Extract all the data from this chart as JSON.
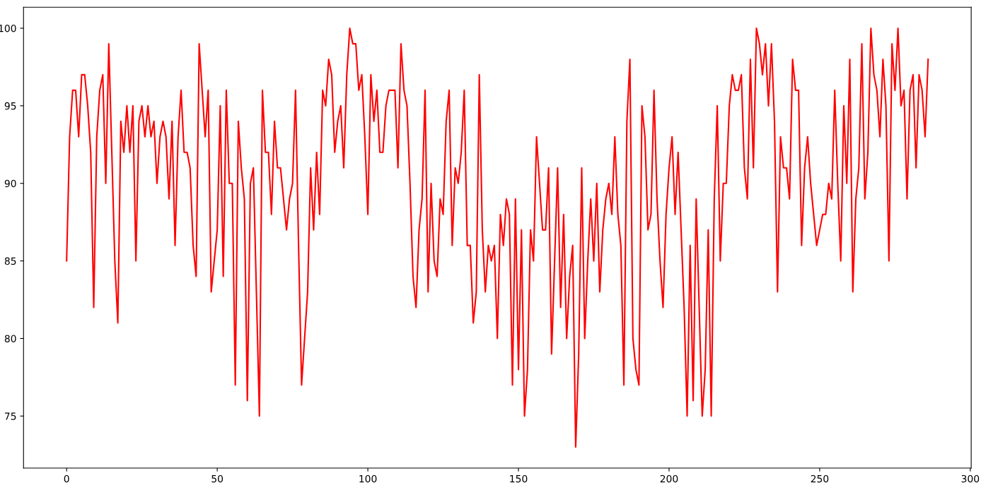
{
  "chart_data": {
    "type": "line",
    "x": [
      0,
      1,
      2,
      3,
      4,
      5,
      6,
      7,
      8,
      9,
      10,
      11,
      12,
      13,
      14,
      15,
      16,
      17,
      18,
      19,
      20,
      21,
      22,
      23,
      24,
      25,
      26,
      27,
      28,
      29,
      30,
      31,
      32,
      33,
      34,
      35,
      36,
      37,
      38,
      39,
      40,
      41,
      42,
      43,
      44,
      45,
      46,
      47,
      48,
      49,
      50,
      51,
      52,
      53,
      54,
      55,
      56,
      57,
      58,
      59,
      60,
      61,
      62,
      63,
      64,
      65,
      66,
      67,
      68,
      69,
      70,
      71,
      72,
      73,
      74,
      75,
      76,
      77,
      78,
      79,
      80,
      81,
      82,
      83,
      84,
      85,
      86,
      87,
      88,
      89,
      90,
      91,
      92,
      93,
      94,
      95,
      96,
      97,
      98,
      99,
      100,
      101,
      102,
      103,
      104,
      105,
      106,
      107,
      108,
      109,
      110,
      111,
      112,
      113,
      114,
      115,
      116,
      117,
      118,
      119,
      120,
      121,
      122,
      123,
      124,
      125,
      126,
      127,
      128,
      129,
      130,
      131,
      132,
      133,
      134,
      135,
      136,
      137,
      138,
      139,
      140,
      141,
      142,
      143,
      144,
      145,
      146,
      147,
      148,
      149,
      150,
      151,
      152,
      153,
      154,
      155,
      156,
      157,
      158,
      159,
      160,
      161,
      162,
      163,
      164,
      165,
      166,
      167,
      168,
      169,
      170,
      171,
      172,
      173,
      174,
      175,
      176,
      177,
      178,
      179,
      180,
      181,
      182,
      183,
      184,
      185,
      186,
      187,
      188,
      189,
      190,
      191,
      192,
      193,
      194,
      195,
      196,
      197,
      198,
      199,
      200,
      201,
      202,
      203,
      204,
      205,
      206,
      207,
      208,
      209,
      210,
      211,
      212,
      213,
      214,
      215,
      216,
      217,
      218,
      219,
      220,
      221,
      222,
      223,
      224,
      225,
      226,
      227,
      228,
      229,
      230,
      231,
      232,
      233,
      234,
      235,
      236,
      237,
      238,
      239,
      240,
      241,
      242,
      243,
      244,
      245,
      246,
      247,
      248,
      249,
      250,
      251,
      252,
      253,
      254,
      255,
      256,
      257,
      258,
      259,
      260,
      261,
      262,
      263,
      264,
      265,
      266,
      267,
      268,
      269,
      270,
      271,
      272,
      273,
      274,
      275,
      276,
      277,
      278,
      279,
      280,
      281,
      282,
      283,
      284,
      285,
      286
    ],
    "series": [
      {
        "color": "#ff0000",
        "values": [
          85,
          93,
          96,
          96,
          93,
          97,
          97,
          95,
          92,
          82,
          93,
          96,
          97,
          90,
          99,
          92,
          85,
          81,
          94,
          92,
          95,
          92,
          95,
          85,
          94,
          95,
          93,
          95,
          93,
          94,
          90,
          93,
          94,
          93,
          89,
          94,
          86,
          93,
          96,
          92,
          92,
          91,
          86,
          84,
          99,
          96,
          93,
          96,
          83,
          85,
          87,
          95,
          84,
          96,
          90,
          90,
          77,
          94,
          91,
          89,
          76,
          90,
          91,
          83,
          75,
          96,
          92,
          92,
          88,
          94,
          91,
          91,
          89,
          87,
          89,
          90,
          96,
          86,
          77,
          80,
          83,
          91,
          87,
          92,
          88,
          96,
          95,
          98,
          97,
          92,
          94,
          95,
          91,
          97,
          100,
          99,
          99,
          96,
          97,
          93,
          88,
          97,
          94,
          96,
          92,
          92,
          95,
          96,
          96,
          96,
          91,
          99,
          96,
          95,
          90,
          84,
          82,
          87,
          89,
          96,
          83,
          90,
          85,
          84,
          89,
          88,
          94,
          96,
          86,
          91,
          90,
          92,
          96,
          86,
          86,
          81,
          83,
          97,
          87,
          83,
          86,
          85,
          86,
          80,
          88,
          86,
          89,
          88,
          77,
          89,
          78,
          87,
          75,
          78,
          87,
          85,
          93,
          90,
          87,
          87,
          91,
          79,
          85,
          91,
          82,
          88,
          80,
          84,
          86,
          73,
          79,
          91,
          80,
          85,
          89,
          85,
          90,
          83,
          87,
          89,
          90,
          88,
          93,
          88,
          86,
          77,
          94,
          98,
          80,
          78,
          77,
          95,
          93,
          87,
          88,
          96,
          89,
          85,
          82,
          88,
          91,
          93,
          88,
          92,
          87,
          82,
          75,
          86,
          76,
          89,
          82,
          75,
          78,
          87,
          75,
          89,
          95,
          85,
          90,
          90,
          95,
          97,
          96,
          96,
          97,
          91,
          89,
          98,
          91,
          100,
          99,
          97,
          99,
          95,
          99,
          94,
          83,
          93,
          91,
          91,
          89,
          98,
          96,
          96,
          86,
          91,
          93,
          90,
          88,
          86,
          87,
          88,
          88,
          90,
          89,
          96,
          90,
          85,
          95,
          90,
          98,
          83,
          89,
          91,
          99,
          89,
          92,
          100,
          97,
          96,
          93,
          98,
          95,
          85,
          99,
          96,
          100,
          95,
          96,
          89,
          96,
          97,
          91,
          97,
          96,
          93,
          98
        ]
      }
    ],
    "xlim": [
      -14.3,
      300.3
    ],
    "ylim": [
      71.65,
      101.35
    ],
    "xticks": [
      0,
      50,
      100,
      150,
      200,
      250,
      300
    ],
    "yticks": [
      75,
      80,
      85,
      90,
      95,
      100
    ],
    "line_style": "solid"
  }
}
